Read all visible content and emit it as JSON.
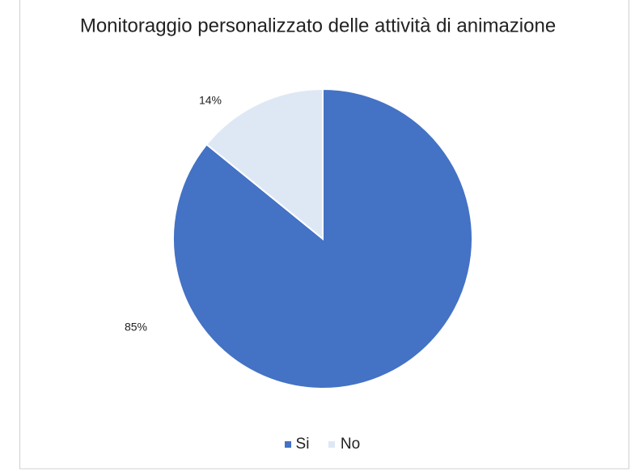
{
  "chart_data": {
    "type": "pie",
    "title": "Monitoraggio personalizzato delle attività di animazione",
    "categories": [
      "Si",
      "No"
    ],
    "values": [
      85,
      14
    ],
    "value_labels": [
      "85%",
      "14%"
    ],
    "colors": [
      "#4472c4",
      "#dee8f5"
    ],
    "legend": "bottom"
  }
}
